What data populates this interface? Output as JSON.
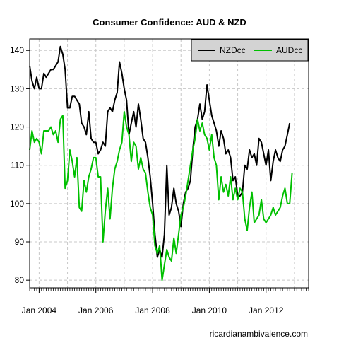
{
  "chart_data": {
    "type": "line",
    "title": "Consumer Confidence: AUD & NZD",
    "xlabel": "",
    "ylabel": "",
    "source_text": "ricardianambivalence.com",
    "x_range": [
      "2003-09",
      "2013-07"
    ],
    "ylim": [
      78,
      143
    ],
    "y_ticks": [
      80,
      90,
      100,
      110,
      120,
      130,
      140
    ],
    "x_tick_labels": [
      {
        "date": "2004-01",
        "label": "Jan 2004"
      },
      {
        "date": "2006-01",
        "label": "Jan 2006"
      },
      {
        "date": "2008-01",
        "label": "Jan 2008"
      },
      {
        "date": "2010-01",
        "label": "Jan 2010"
      },
      {
        "date": "2012-01",
        "label": "Jan 2012"
      }
    ],
    "grid": true,
    "legend_position": "top-right",
    "series": [
      {
        "name": "NZDcc",
        "color": "#000000",
        "points": [
          [
            "2003-09",
            136
          ],
          [
            "2003-10",
            132
          ],
          [
            "2003-11",
            130
          ],
          [
            "2003-12",
            133
          ],
          [
            "2004-01",
            130
          ],
          [
            "2004-02",
            130
          ],
          [
            "2004-03",
            134
          ],
          [
            "2004-04",
            133
          ],
          [
            "2004-05",
            134
          ],
          [
            "2004-06",
            135
          ],
          [
            "2004-07",
            135
          ],
          [
            "2004-08",
            136
          ],
          [
            "2004-09",
            137
          ],
          [
            "2004-10",
            141
          ],
          [
            "2004-11",
            139
          ],
          [
            "2004-12",
            135
          ],
          [
            "2005-01",
            125
          ],
          [
            "2005-02",
            125
          ],
          [
            "2005-03",
            128
          ],
          [
            "2005-04",
            128
          ],
          [
            "2005-05",
            127
          ],
          [
            "2005-06",
            126
          ],
          [
            "2005-07",
            121
          ],
          [
            "2005-08",
            120
          ],
          [
            "2005-09",
            118
          ],
          [
            "2005-10",
            124
          ],
          [
            "2005-11",
            117
          ],
          [
            "2005-12",
            116
          ],
          [
            "2006-01",
            116
          ],
          [
            "2006-02",
            113
          ],
          [
            "2006-03",
            114
          ],
          [
            "2006-04",
            116
          ],
          [
            "2006-05",
            115
          ],
          [
            "2006-06",
            124
          ],
          [
            "2006-07",
            125
          ],
          [
            "2006-08",
            124
          ],
          [
            "2006-09",
            127
          ],
          [
            "2006-10",
            129
          ],
          [
            "2006-11",
            137
          ],
          [
            "2006-12",
            134
          ],
          [
            "2007-01",
            130
          ],
          [
            "2007-02",
            127
          ],
          [
            "2007-03",
            118
          ],
          [
            "2007-04",
            121
          ],
          [
            "2007-05",
            124
          ],
          [
            "2007-06",
            120
          ],
          [
            "2007-07",
            126
          ],
          [
            "2007-08",
            122
          ],
          [
            "2007-09",
            117
          ],
          [
            "2007-10",
            116
          ],
          [
            "2007-11",
            112
          ],
          [
            "2007-12",
            107
          ],
          [
            "2008-01",
            100
          ],
          [
            "2008-02",
            92
          ],
          [
            "2008-03",
            86
          ],
          [
            "2008-04",
            88
          ],
          [
            "2008-05",
            86
          ],
          [
            "2008-06",
            92
          ],
          [
            "2008-07",
            110
          ],
          [
            "2008-08",
            97
          ],
          [
            "2008-09",
            99
          ],
          [
            "2008-10",
            104
          ],
          [
            "2008-11",
            100
          ],
          [
            "2008-12",
            98
          ],
          [
            "2009-01",
            94
          ],
          [
            "2009-02",
            100
          ],
          [
            "2009-03",
            103
          ],
          [
            "2009-04",
            104
          ],
          [
            "2009-05",
            106
          ],
          [
            "2009-06",
            114
          ],
          [
            "2009-07",
            120
          ],
          [
            "2009-08",
            122
          ],
          [
            "2009-09",
            126
          ],
          [
            "2009-10",
            122
          ],
          [
            "2009-11",
            124
          ],
          [
            "2009-12",
            131
          ],
          [
            "2010-01",
            127
          ],
          [
            "2010-02",
            123
          ],
          [
            "2010-03",
            121
          ],
          [
            "2010-04",
            119
          ],
          [
            "2010-05",
            115
          ],
          [
            "2010-06",
            119
          ],
          [
            "2010-07",
            117
          ],
          [
            "2010-08",
            113
          ],
          [
            "2010-09",
            114
          ],
          [
            "2010-10",
            112
          ],
          [
            "2010-11",
            106
          ],
          [
            "2010-12",
            107
          ],
          [
            "2011-01",
            102
          ],
          [
            "2011-02",
            102
          ],
          [
            "2011-03",
            103
          ],
          [
            "2011-04",
            110
          ],
          [
            "2011-05",
            109
          ],
          [
            "2011-06",
            114
          ],
          [
            "2011-07",
            112
          ],
          [
            "2011-08",
            113
          ],
          [
            "2011-09",
            110
          ],
          [
            "2011-10",
            117
          ],
          [
            "2011-11",
            116
          ],
          [
            "2011-12",
            113
          ],
          [
            "2012-01",
            110
          ],
          [
            "2012-02",
            114
          ],
          [
            "2012-03",
            106
          ],
          [
            "2012-04",
            111
          ],
          [
            "2012-05",
            114
          ],
          [
            "2012-06",
            112
          ],
          [
            "2012-07",
            111
          ],
          [
            "2012-08",
            114
          ],
          [
            "2012-09",
            115
          ],
          [
            "2012-10",
            118
          ],
          [
            "2012-11",
            121
          ]
        ]
      },
      {
        "name": "AUDcc",
        "color": "#00c000",
        "points": [
          [
            "2003-09",
            114
          ],
          [
            "2003-10",
            119
          ],
          [
            "2003-11",
            116
          ],
          [
            "2003-12",
            117
          ],
          [
            "2004-01",
            116
          ],
          [
            "2004-02",
            113
          ],
          [
            "2004-03",
            119
          ],
          [
            "2004-04",
            119
          ],
          [
            "2004-05",
            119
          ],
          [
            "2004-06",
            120
          ],
          [
            "2004-07",
            118
          ],
          [
            "2004-08",
            119
          ],
          [
            "2004-09",
            116
          ],
          [
            "2004-10",
            122
          ],
          [
            "2004-11",
            123
          ],
          [
            "2004-12",
            104
          ],
          [
            "2005-01",
            106
          ],
          [
            "2005-02",
            114
          ],
          [
            "2005-03",
            111
          ],
          [
            "2005-04",
            107
          ],
          [
            "2005-05",
            112
          ],
          [
            "2005-06",
            99
          ],
          [
            "2005-07",
            98
          ],
          [
            "2005-08",
            106
          ],
          [
            "2005-09",
            103
          ],
          [
            "2005-10",
            107
          ],
          [
            "2005-11",
            109
          ],
          [
            "2005-12",
            112
          ],
          [
            "2006-01",
            112
          ],
          [
            "2006-02",
            107
          ],
          [
            "2006-03",
            107
          ],
          [
            "2006-04",
            90
          ],
          [
            "2006-05",
            98
          ],
          [
            "2006-06",
            104
          ],
          [
            "2006-07",
            96
          ],
          [
            "2006-08",
            104
          ],
          [
            "2006-09",
            109
          ],
          [
            "2006-10",
            111
          ],
          [
            "2006-11",
            114
          ],
          [
            "2006-12",
            116
          ],
          [
            "2007-01",
            124
          ],
          [
            "2007-02",
            120
          ],
          [
            "2007-03",
            118
          ],
          [
            "2007-04",
            111
          ],
          [
            "2007-05",
            116
          ],
          [
            "2007-06",
            115
          ],
          [
            "2007-07",
            109
          ],
          [
            "2007-08",
            112
          ],
          [
            "2007-09",
            109
          ],
          [
            "2007-10",
            108
          ],
          [
            "2007-11",
            103
          ],
          [
            "2007-12",
            99
          ],
          [
            "2008-01",
            97
          ],
          [
            "2008-02",
            89
          ],
          [
            "2008-03",
            87
          ],
          [
            "2008-04",
            89
          ],
          [
            "2008-05",
            80
          ],
          [
            "2008-06",
            84
          ],
          [
            "2008-07",
            88
          ],
          [
            "2008-08",
            86
          ],
          [
            "2008-09",
            85
          ],
          [
            "2008-10",
            91
          ],
          [
            "2008-11",
            87
          ],
          [
            "2008-12",
            92
          ],
          [
            "2009-01",
            97
          ],
          [
            "2009-02",
            99
          ],
          [
            "2009-03",
            102
          ],
          [
            "2009-04",
            106
          ],
          [
            "2009-05",
            110
          ],
          [
            "2009-06",
            114
          ],
          [
            "2009-07",
            117
          ],
          [
            "2009-08",
            122
          ],
          [
            "2009-09",
            119
          ],
          [
            "2009-10",
            121
          ],
          [
            "2009-11",
            118
          ],
          [
            "2009-12",
            117
          ],
          [
            "2010-01",
            114
          ],
          [
            "2010-02",
            118
          ],
          [
            "2010-03",
            112
          ],
          [
            "2010-04",
            110
          ],
          [
            "2010-05",
            101
          ],
          [
            "2010-06",
            107
          ],
          [
            "2010-07",
            103
          ],
          [
            "2010-08",
            105
          ],
          [
            "2010-09",
            102
          ],
          [
            "2010-10",
            107
          ],
          [
            "2010-11",
            101
          ],
          [
            "2010-12",
            104
          ],
          [
            "2011-01",
            101
          ],
          [
            "2011-02",
            104
          ],
          [
            "2011-03",
            103
          ],
          [
            "2011-04",
            96
          ],
          [
            "2011-05",
            93
          ],
          [
            "2011-06",
            99
          ],
          [
            "2011-07",
            103
          ],
          [
            "2011-08",
            95
          ],
          [
            "2011-09",
            96
          ],
          [
            "2011-10",
            97
          ],
          [
            "2011-11",
            101
          ],
          [
            "2011-12",
            96
          ],
          [
            "2012-01",
            95
          ],
          [
            "2012-02",
            96
          ],
          [
            "2012-03",
            97
          ],
          [
            "2012-04",
            99
          ],
          [
            "2012-05",
            97
          ],
          [
            "2012-06",
            98
          ],
          [
            "2012-07",
            99
          ],
          [
            "2012-08",
            102
          ],
          [
            "2012-09",
            104
          ],
          [
            "2012-10",
            100
          ],
          [
            "2012-11",
            100
          ],
          [
            "2012-12",
            108
          ]
        ]
      }
    ]
  }
}
